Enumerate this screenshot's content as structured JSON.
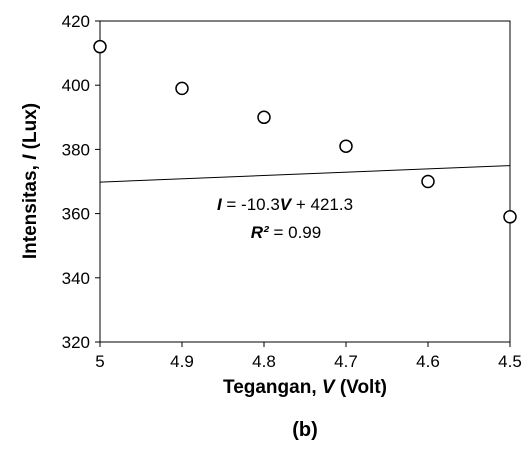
{
  "chart_data": {
    "type": "scatter",
    "xlabel_prefix": "Tegangan, ",
    "xlabel_var": "V",
    "xlabel_suffix": " (Volt)",
    "ylabel_prefix": "Intensitas, ",
    "ylabel_var": "I",
    "ylabel_suffix": " (Lux)",
    "xlim": [
      5,
      4.5
    ],
    "ylim": [
      320,
      420
    ],
    "x_reversed": true,
    "xticks": [
      "5",
      "4.9",
      "4.8",
      "4.7",
      "4.6",
      "4.5"
    ],
    "xtick_values": [
      5,
      4.9,
      4.8,
      4.7,
      4.6,
      4.5
    ],
    "yticks": [
      "320",
      "340",
      "360",
      "380",
      "400",
      "420"
    ],
    "ytick_values": [
      320,
      340,
      360,
      380,
      400,
      420
    ],
    "grid": false,
    "points": {
      "x": [
        5,
        4.9,
        4.8,
        4.7,
        4.6,
        4.5
      ],
      "y": [
        412,
        399,
        390,
        381,
        370,
        359
      ]
    },
    "trendline": {
      "slope": -10.3,
      "intercept": 421.3,
      "x_range": [
        5,
        4.5
      ]
    },
    "equation": {
      "var_i": "I",
      "eq_mid": " = -10.3",
      "var_v": "V",
      "eq_end": " + 421.3",
      "r2_label": "R²",
      "r2_value": " = 0.99"
    },
    "panel_label": "(b)"
  }
}
